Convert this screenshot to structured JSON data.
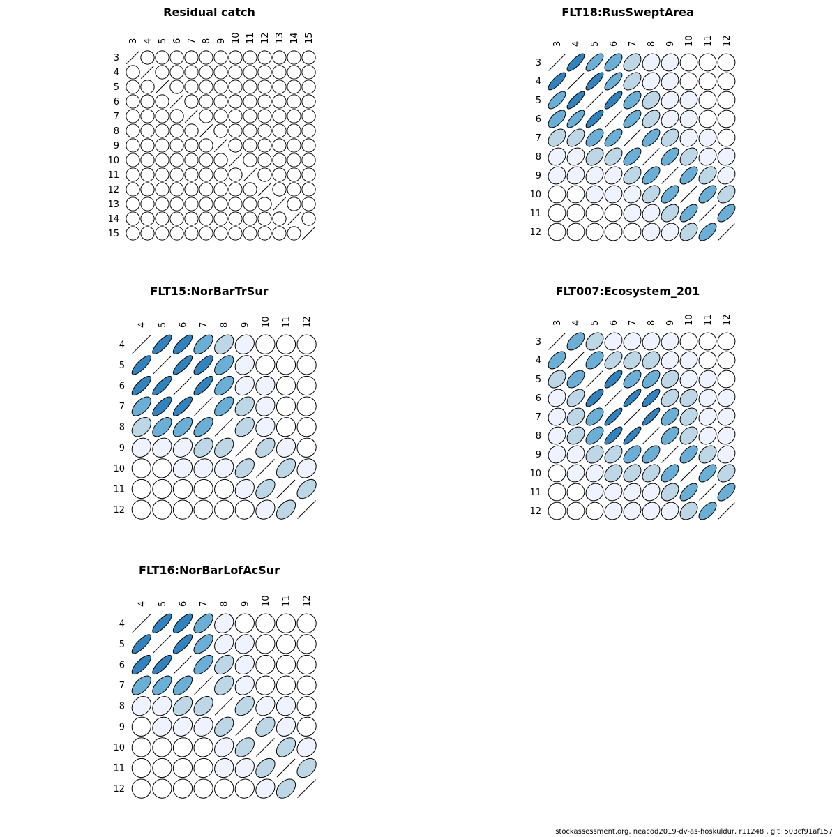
{
  "footer": "stockassessment.org, neacod2019-dv-as-hoskuldur, r11248 , git: 503cf91af157",
  "colors": {
    "positive_scale": [
      "#ffffff",
      "#eff3ff",
      "#bdd7e7",
      "#6baed6",
      "#3182bd"
    ],
    "outline": "#000000",
    "diagonal": "#000000"
  },
  "chart_data": [
    {
      "type": "heatmap",
      "subtype": "correlation-ellipse-matrix",
      "title": "Residual catch",
      "ages": [
        "3",
        "4",
        "5",
        "6",
        "7",
        "8",
        "9",
        "10",
        "11",
        "12",
        "13",
        "14",
        "15"
      ],
      "diag_line": true,
      "matrix": [
        [
          1,
          0,
          0,
          0,
          0,
          0,
          0,
          0,
          0,
          0,
          0,
          0,
          0
        ],
        [
          0,
          1,
          0,
          0,
          0,
          0,
          0,
          0,
          0,
          0,
          0,
          0,
          0
        ],
        [
          0,
          0,
          1,
          0,
          0,
          0,
          0,
          0,
          0,
          0,
          0,
          0,
          0
        ],
        [
          0,
          0,
          0,
          1,
          0,
          0,
          0,
          0,
          0,
          0,
          0,
          0,
          0
        ],
        [
          0,
          0,
          0,
          0,
          1,
          0,
          0,
          0,
          0,
          0,
          0,
          0,
          0
        ],
        [
          0,
          0,
          0,
          0,
          0,
          1,
          0,
          0,
          0,
          0,
          0,
          0,
          0
        ],
        [
          0,
          0,
          0,
          0,
          0,
          0,
          1,
          0,
          0,
          0,
          0,
          0,
          0
        ],
        [
          0,
          0,
          0,
          0,
          0,
          0,
          0,
          1,
          0,
          0,
          0,
          0,
          0
        ],
        [
          0,
          0,
          0,
          0,
          0,
          0,
          0,
          0,
          1,
          0,
          0,
          0,
          0
        ],
        [
          0,
          0,
          0,
          0,
          0,
          0,
          0,
          0,
          0,
          1,
          0,
          0,
          0
        ],
        [
          0,
          0,
          0,
          0,
          0,
          0,
          0,
          0,
          0,
          0,
          1,
          0,
          0
        ],
        [
          0,
          0,
          0,
          0,
          0,
          0,
          0,
          0,
          0,
          0,
          0,
          1,
          0
        ],
        [
          0,
          0,
          0,
          0,
          0,
          0,
          0,
          0,
          0,
          0,
          0,
          0,
          1
        ]
      ]
    },
    {
      "type": "heatmap",
      "subtype": "correlation-ellipse-matrix",
      "title": "FLT18:RusSweptArea",
      "ages": [
        "3",
        "4",
        "5",
        "6",
        "7",
        "8",
        "9",
        "10",
        "11",
        "12"
      ],
      "diag_line": true,
      "matrix": [
        [
          1.0,
          0.8,
          0.72,
          0.62,
          0.4,
          0.18,
          0.12,
          0.02,
          0.01,
          0.0
        ],
        [
          0.8,
          1.0,
          0.82,
          0.74,
          0.46,
          0.22,
          0.14,
          0.04,
          0.02,
          0.01
        ],
        [
          0.72,
          0.82,
          1.0,
          0.82,
          0.58,
          0.36,
          0.2,
          0.08,
          0.04,
          0.02
        ],
        [
          0.62,
          0.74,
          0.82,
          1.0,
          0.66,
          0.42,
          0.24,
          0.1,
          0.06,
          0.03
        ],
        [
          0.4,
          0.46,
          0.58,
          0.66,
          1.0,
          0.62,
          0.4,
          0.16,
          0.1,
          0.04
        ],
        [
          0.18,
          0.22,
          0.36,
          0.42,
          0.62,
          1.0,
          0.6,
          0.4,
          0.18,
          0.12
        ],
        [
          0.12,
          0.14,
          0.2,
          0.24,
          0.4,
          0.6,
          1.0,
          0.62,
          0.4,
          0.18
        ],
        [
          0.02,
          0.04,
          0.08,
          0.1,
          0.16,
          0.4,
          0.62,
          1.0,
          0.62,
          0.4
        ],
        [
          0.01,
          0.02,
          0.04,
          0.06,
          0.1,
          0.18,
          0.4,
          0.62,
          1.0,
          0.62
        ],
        [
          0.0,
          0.01,
          0.02,
          0.03,
          0.04,
          0.12,
          0.18,
          0.4,
          0.62,
          1.0
        ]
      ]
    },
    {
      "type": "heatmap",
      "subtype": "correlation-ellipse-matrix",
      "title": "FLT15:NorBarTrSur",
      "ages": [
        "4",
        "5",
        "6",
        "7",
        "8",
        "9",
        "10",
        "11",
        "12"
      ],
      "diag_line": true,
      "matrix": [
        [
          1.0,
          0.8,
          0.78,
          0.6,
          0.4,
          0.16,
          0.02,
          0.01,
          0.0
        ],
        [
          0.8,
          1.0,
          0.82,
          0.76,
          0.56,
          0.2,
          0.06,
          0.02,
          0.0
        ],
        [
          0.78,
          0.82,
          1.0,
          0.8,
          0.58,
          0.26,
          0.12,
          0.03,
          0.01
        ],
        [
          0.6,
          0.76,
          0.8,
          1.0,
          0.6,
          0.38,
          0.14,
          0.05,
          0.02
        ],
        [
          0.4,
          0.56,
          0.58,
          0.6,
          1.0,
          0.4,
          0.16,
          0.06,
          0.02
        ],
        [
          0.16,
          0.2,
          0.26,
          0.38,
          0.4,
          1.0,
          0.44,
          0.18,
          0.04
        ],
        [
          0.02,
          0.06,
          0.12,
          0.14,
          0.16,
          0.44,
          1.0,
          0.46,
          0.2
        ],
        [
          0.01,
          0.02,
          0.03,
          0.05,
          0.06,
          0.18,
          0.46,
          1.0,
          0.48
        ],
        [
          0.0,
          0.0,
          0.01,
          0.02,
          0.02,
          0.04,
          0.2,
          0.48,
          1.0
        ]
      ]
    },
    {
      "type": "heatmap",
      "subtype": "correlation-ellipse-matrix",
      "title": "FLT007:Ecosystem_201",
      "ages": [
        "3",
        "4",
        "5",
        "6",
        "7",
        "8",
        "9",
        "10",
        "11",
        "12"
      ],
      "diag_line": true,
      "matrix": [
        [
          1.0,
          0.56,
          0.36,
          0.16,
          0.14,
          0.14,
          0.12,
          0.04,
          0.02,
          0.01
        ],
        [
          0.56,
          1.0,
          0.52,
          0.48,
          0.3,
          0.3,
          0.16,
          0.12,
          0.04,
          0.02
        ],
        [
          0.36,
          0.52,
          1.0,
          0.78,
          0.56,
          0.56,
          0.32,
          0.16,
          0.12,
          0.04
        ],
        [
          0.16,
          0.48,
          0.78,
          1.0,
          0.86,
          0.8,
          0.4,
          0.3,
          0.16,
          0.12
        ],
        [
          0.14,
          0.3,
          0.56,
          0.86,
          1.0,
          0.86,
          0.54,
          0.34,
          0.2,
          0.14
        ],
        [
          0.14,
          0.3,
          0.56,
          0.8,
          0.86,
          1.0,
          0.56,
          0.38,
          0.2,
          0.14
        ],
        [
          0.12,
          0.16,
          0.32,
          0.4,
          0.54,
          0.56,
          1.0,
          0.58,
          0.36,
          0.14
        ],
        [
          0.04,
          0.12,
          0.16,
          0.3,
          0.34,
          0.38,
          0.58,
          1.0,
          0.62,
          0.36
        ],
        [
          0.02,
          0.04,
          0.12,
          0.16,
          0.2,
          0.2,
          0.36,
          0.62,
          1.0,
          0.62
        ],
        [
          0.01,
          0.02,
          0.04,
          0.12,
          0.14,
          0.14,
          0.14,
          0.36,
          0.62,
          1.0
        ]
      ]
    },
    {
      "type": "heatmap",
      "subtype": "correlation-ellipse-matrix",
      "title": "FLT16:NorBarLofAcSur",
      "ages": [
        "4",
        "5",
        "6",
        "7",
        "8",
        "9",
        "10",
        "11",
        "12"
      ],
      "diag_line": true,
      "matrix": [
        [
          1.0,
          0.8,
          0.76,
          0.6,
          0.2,
          0.04,
          0.02,
          0.01,
          0.0
        ],
        [
          0.8,
          1.0,
          0.8,
          0.62,
          0.24,
          0.16,
          0.04,
          0.02,
          0.01
        ],
        [
          0.76,
          0.8,
          1.0,
          0.62,
          0.4,
          0.2,
          0.06,
          0.03,
          0.02
        ],
        [
          0.6,
          0.62,
          0.62,
          1.0,
          0.4,
          0.22,
          0.06,
          0.04,
          0.02
        ],
        [
          0.2,
          0.24,
          0.4,
          0.4,
          1.0,
          0.42,
          0.24,
          0.08,
          0.04
        ],
        [
          0.04,
          0.16,
          0.2,
          0.22,
          0.42,
          1.0,
          0.4,
          0.2,
          0.06
        ],
        [
          0.02,
          0.04,
          0.06,
          0.06,
          0.24,
          0.4,
          1.0,
          0.42,
          0.2
        ],
        [
          0.01,
          0.02,
          0.03,
          0.04,
          0.08,
          0.2,
          0.42,
          1.0,
          0.4
        ],
        [
          0.0,
          0.01,
          0.02,
          0.02,
          0.04,
          0.06,
          0.2,
          0.4,
          1.0
        ]
      ]
    }
  ]
}
